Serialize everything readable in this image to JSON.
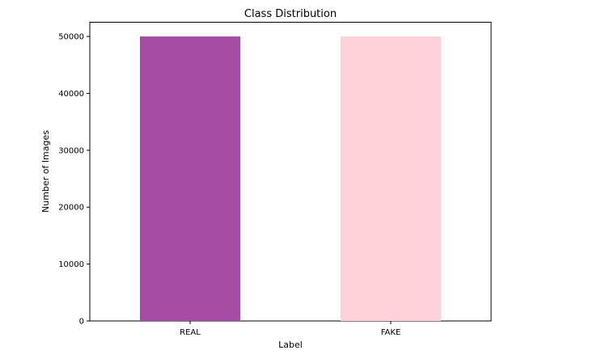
{
  "chart_data": {
    "type": "bar",
    "title": "Class Distribution",
    "xlabel": "Label",
    "ylabel": "Number of Images",
    "categories": [
      "REAL",
      "FAKE"
    ],
    "values": [
      50000,
      50000
    ],
    "colors": [
      "#a54ca4",
      "#ffd1d8"
    ],
    "ylim": [
      0,
      52500
    ],
    "yticks": [
      0,
      10000,
      20000,
      30000,
      40000,
      50000
    ],
    "grid": false,
    "legend": "none"
  }
}
